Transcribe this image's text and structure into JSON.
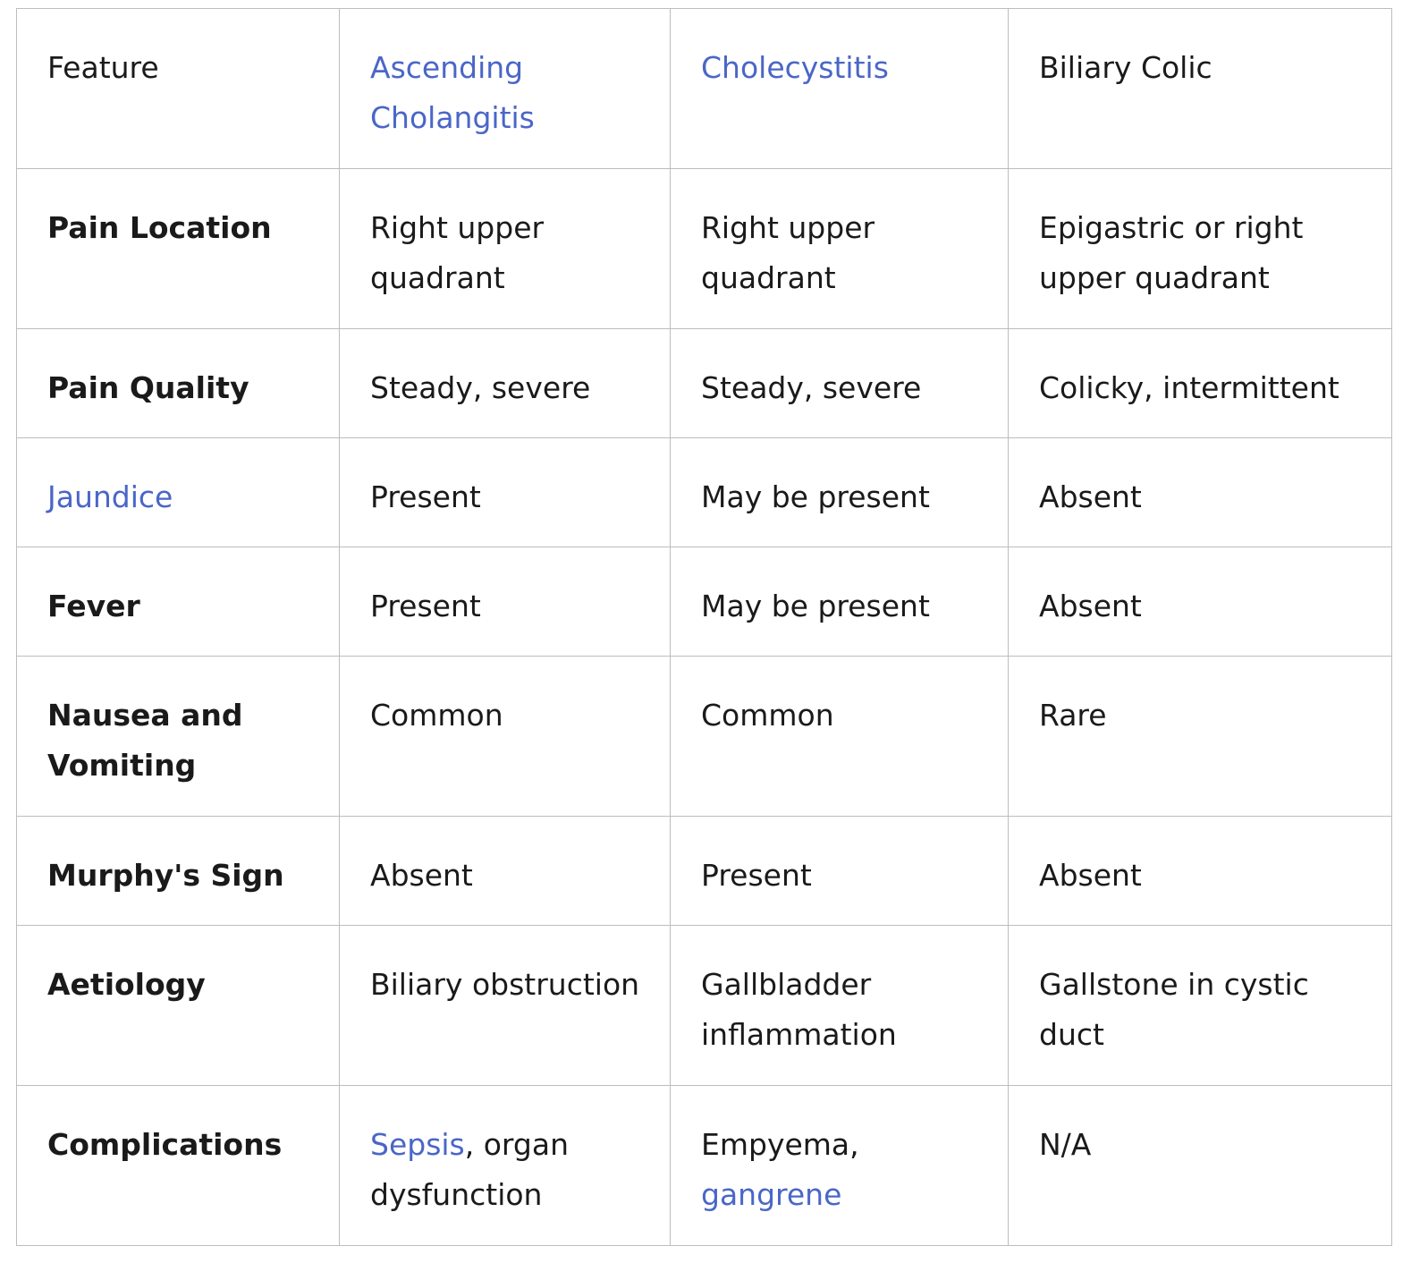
{
  "table": {
    "header": {
      "feature": "Feature",
      "col1": "Ascending Cholangitis",
      "col2": "Cholecystitis",
      "col3": "Biliary Colic"
    },
    "rows": [
      {
        "label": "Pain Location",
        "c1": "Right upper quadrant",
        "c2": "Right upper quadrant",
        "c3": "Epigastric or right upper quadrant"
      },
      {
        "label": "Pain Quality",
        "c1": "Steady, severe",
        "c2": "Steady, severe",
        "c3": "Colicky, intermittent"
      },
      {
        "label": "Jaundice",
        "c1": "Present",
        "c2": "May be present",
        "c3": "Absent"
      },
      {
        "label": "Fever",
        "c1": "Present",
        "c2": "May be present",
        "c3": "Absent"
      },
      {
        "label": "Nausea and Vomiting",
        "c1": "Common",
        "c2": "Common",
        "c3": "Rare"
      },
      {
        "label": "Murphy's Sign",
        "c1": "Absent",
        "c2": "Present",
        "c3": "Absent"
      },
      {
        "label": "Aetiology",
        "c1": "Biliary obstruction",
        "c2": "Gallbladder inflammation",
        "c3": "Gallstone in cystic duct"
      },
      {
        "label": "Complications",
        "c1_link": "Sepsis",
        "c1_rest": ", organ dysfunction",
        "c2_text": "Empyema,",
        "c2_link": "gangrene",
        "c3": "N/A"
      }
    ]
  },
  "colors": {
    "link": "#4a66c7",
    "text": "#1a1a1a",
    "border": "#bdbdbd"
  }
}
